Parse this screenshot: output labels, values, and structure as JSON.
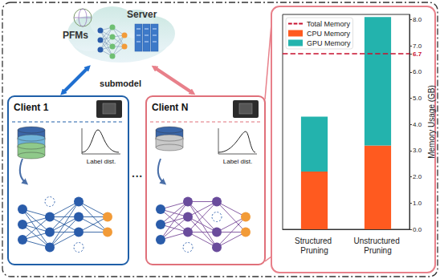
{
  "diagram": {
    "cloud": {
      "left_label": "PFMs",
      "right_label": "Server"
    },
    "link_label": "submodel",
    "ellipsis": "···",
    "clients": [
      {
        "name": "Client 1",
        "color": "#1f5fa8",
        "dist_label": "Label dist."
      },
      {
        "name": "Client N",
        "color": "#e0707a",
        "dist_label": "Label dist."
      }
    ]
  },
  "chart_data": {
    "type": "bar",
    "stacked": true,
    "categories": [
      "Structured Pruning",
      "Unstructured Pruning"
    ],
    "series": [
      {
        "name": "CPU Memory",
        "color": "#ff5a1f",
        "values": [
          2.2,
          3.2
        ]
      },
      {
        "name": "GPU Memory",
        "color": "#23b3ad",
        "values": [
          2.1,
          4.9
        ]
      }
    ],
    "reference_line": {
      "name": "Total Memory",
      "value": 6.7,
      "color": "#c8102e",
      "line_style": "dashed"
    },
    "y_label": "Memory Usage (GB)",
    "ylim": [
      0,
      8.2
    ],
    "yticks": [
      {
        "value": 0,
        "label": "0.0"
      },
      {
        "value": 1,
        "label": "1.0"
      },
      {
        "value": 2,
        "label": "2.0"
      },
      {
        "value": 3,
        "label": "3.0"
      },
      {
        "value": 4,
        "label": "4.0"
      },
      {
        "value": 5,
        "label": "5.0"
      },
      {
        "value": 6,
        "label": "6.0"
      },
      6.7,
      {
        "value": 7,
        "label": "7.0"
      },
      {
        "value": 8,
        "label": "8.0"
      }
    ],
    "grid": false,
    "legend": "upper left"
  }
}
